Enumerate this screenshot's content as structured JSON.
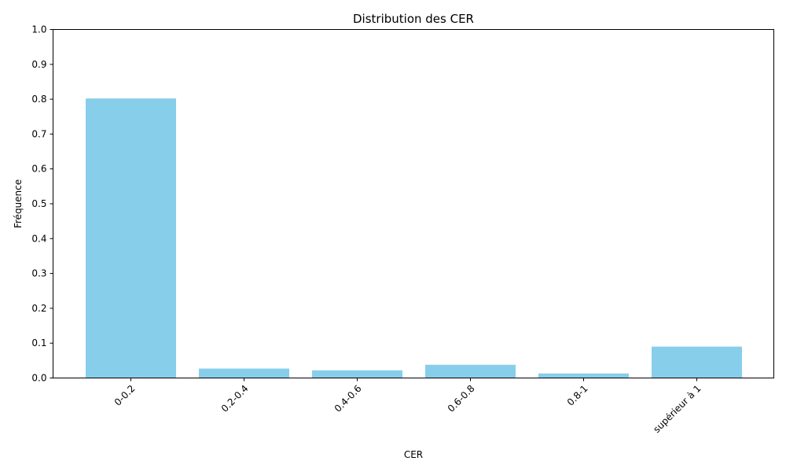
{
  "chart_data": {
    "type": "bar",
    "title": "Distribution des CER",
    "xlabel": "CER",
    "ylabel": "Fréquence",
    "categories": [
      "0-0.2",
      "0.2-0.4",
      "0.4-0.6",
      "0.6-0.8",
      "0.8-1",
      "supérieur à 1"
    ],
    "values": [
      0.802,
      0.027,
      0.022,
      0.038,
      0.013,
      0.09
    ],
    "ylim": [
      0,
      1.0
    ],
    "yticks": [
      0.0,
      0.1,
      0.2,
      0.3,
      0.4,
      0.5,
      0.6,
      0.7,
      0.8,
      0.9,
      1.0
    ],
    "bar_color": "#87ceeb",
    "grid": false,
    "legend": "none"
  }
}
